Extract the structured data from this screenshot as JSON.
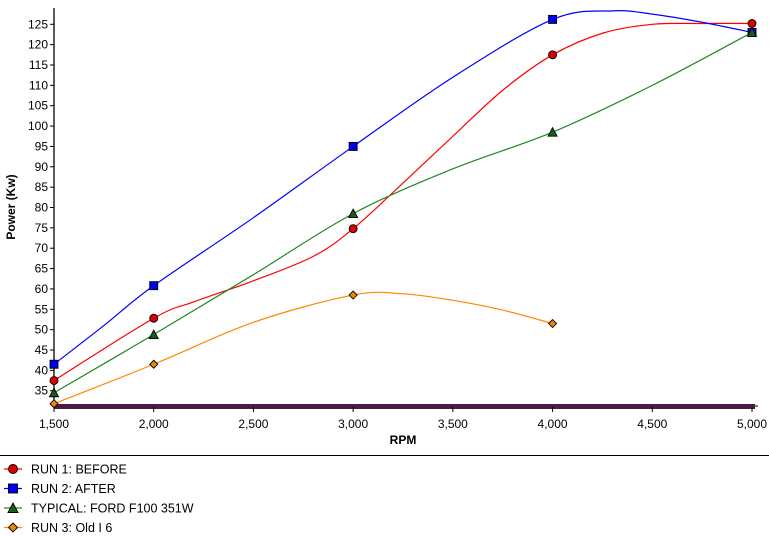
{
  "chart_data": {
    "type": "line",
    "title": "",
    "xlabel": "RPM",
    "ylabel": "Power (Kw)",
    "xlim": [
      1500,
      5000
    ],
    "ylim": [
      31,
      129
    ],
    "x_ticks": [
      1500,
      2000,
      2500,
      3000,
      3500,
      4000,
      4500,
      5000
    ],
    "x_tick_labels": [
      "1,500",
      "2,000",
      "2,500",
      "3,000",
      "3,500",
      "4,000",
      "4,500",
      "5,000"
    ],
    "y_ticks": [
      35,
      40,
      45,
      50,
      55,
      60,
      65,
      70,
      75,
      80,
      85,
      90,
      95,
      100,
      105,
      110,
      115,
      120,
      125
    ],
    "y_tick_labels": [
      "35",
      "40",
      "45",
      "50",
      "55",
      "60",
      "65",
      "70",
      "75",
      "80",
      "85",
      "90",
      "95",
      "100",
      "105",
      "110",
      "115",
      "120",
      "125"
    ],
    "grid": false,
    "legend_position": "bottom-left",
    "series": [
      {
        "name": "RUN 1: BEFORE",
        "color": "#ff0000",
        "marker": "circle",
        "marker_color": "#dd0000",
        "markers": [
          [
            1500,
            37.5
          ],
          [
            2000,
            52.8
          ],
          [
            3000,
            74.8
          ],
          [
            4000,
            117.5
          ],
          [
            5000,
            125.2
          ]
        ],
        "curve": [
          [
            1500,
            37.5
          ],
          [
            2000,
            52.8
          ],
          [
            2200,
            56.8
          ],
          [
            2500,
            62.0
          ],
          [
            2800,
            68.0
          ],
          [
            3000,
            74.8
          ],
          [
            3250,
            86.0
          ],
          [
            3500,
            97.5
          ],
          [
            3750,
            108.8
          ],
          [
            4000,
            117.5
          ],
          [
            4250,
            122.8
          ],
          [
            4500,
            125.0
          ],
          [
            4750,
            125.2
          ],
          [
            5000,
            125.2
          ]
        ]
      },
      {
        "name": "RUN 2: AFTER",
        "color": "#0000ff",
        "marker": "square",
        "marker_color": "#0000ee",
        "markers": [
          [
            1500,
            41.5
          ],
          [
            2000,
            60.8
          ],
          [
            3000,
            95.0
          ],
          [
            4000,
            126.2
          ],
          [
            5000,
            123.0
          ]
        ],
        "curve": [
          [
            1500,
            41.5
          ],
          [
            1750,
            51.0
          ],
          [
            2000,
            60.8
          ],
          [
            2500,
            77.5
          ],
          [
            3000,
            95.0
          ],
          [
            3500,
            112.0
          ],
          [
            4000,
            126.2
          ],
          [
            4300,
            128.3
          ],
          [
            4500,
            127.5
          ],
          [
            4750,
            125.5
          ],
          [
            5000,
            123.0
          ]
        ]
      },
      {
        "name": "TYPICAL: FORD F100 351W",
        "color": "#228822",
        "marker": "triangle",
        "marker_color": "#1a5c1a",
        "markers": [
          [
            1500,
            34.5
          ],
          [
            2000,
            48.8
          ],
          [
            3000,
            78.5
          ],
          [
            4000,
            98.5
          ],
          [
            5000,
            123.0
          ]
        ],
        "curve": [
          [
            1500,
            34.5
          ],
          [
            2000,
            48.8
          ],
          [
            2500,
            63.5
          ],
          [
            3000,
            78.5
          ],
          [
            3500,
            89.5
          ],
          [
            4000,
            98.5
          ],
          [
            4500,
            110.0
          ],
          [
            5000,
            123.0
          ]
        ]
      },
      {
        "name": "RUN 3: Old I 6",
        "color": "#ff8800",
        "marker": "diamond",
        "marker_color": "#ee8800",
        "markers": [
          [
            1500,
            31.8
          ],
          [
            2000,
            41.5
          ],
          [
            3000,
            58.5
          ],
          [
            4000,
            51.5
          ]
        ],
        "curve": [
          [
            1500,
            31.8
          ],
          [
            2000,
            41.5
          ],
          [
            2500,
            51.8
          ],
          [
            3000,
            58.5
          ],
          [
            3250,
            58.8
          ],
          [
            3500,
            57.2
          ],
          [
            3750,
            54.8
          ],
          [
            4000,
            51.5
          ]
        ]
      }
    ]
  }
}
